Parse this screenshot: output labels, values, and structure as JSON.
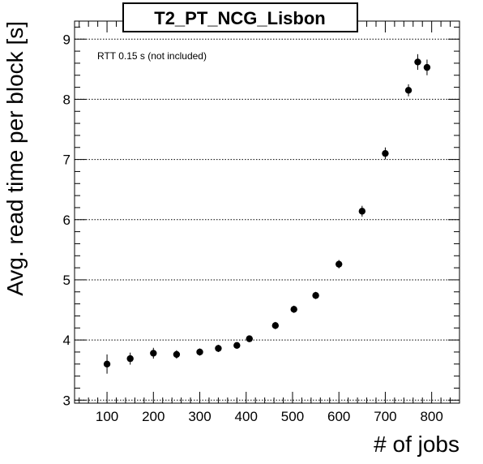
{
  "chart_data": {
    "type": "scatter",
    "title": "T2_PT_NCG_Lisbon",
    "xlabel": "# of jobs",
    "ylabel": "Avg. read time per block [s]",
    "annotation": "RTT 0.15 s (not included)",
    "xlim": [
      30,
      860
    ],
    "ylim": [
      2.95,
      9.3
    ],
    "xticks": [
      100,
      200,
      300,
      400,
      500,
      600,
      700,
      800
    ],
    "yticks": [
      3,
      4,
      5,
      6,
      7,
      8,
      9
    ],
    "grid_y": true,
    "grid_x": false,
    "marker_color": "#000000",
    "points": [
      {
        "x": 100,
        "y": 3.6,
        "err": 0.16
      },
      {
        "x": 150,
        "y": 3.69,
        "err": 0.1
      },
      {
        "x": 200,
        "y": 3.78,
        "err": 0.09
      },
      {
        "x": 250,
        "y": 3.76,
        "err": 0.07
      },
      {
        "x": 300,
        "y": 3.8,
        "err": 0.06
      },
      {
        "x": 340,
        "y": 3.86,
        "err": 0.06
      },
      {
        "x": 380,
        "y": 3.91,
        "err": 0.05
      },
      {
        "x": 407,
        "y": 4.02,
        "err": 0.05
      },
      {
        "x": 463,
        "y": 4.24,
        "err": 0.06
      },
      {
        "x": 503,
        "y": 4.51,
        "err": 0.06
      },
      {
        "x": 550,
        "y": 4.74,
        "err": 0.06
      },
      {
        "x": 600,
        "y": 5.26,
        "err": 0.07
      },
      {
        "x": 650,
        "y": 6.14,
        "err": 0.09
      },
      {
        "x": 700,
        "y": 7.1,
        "err": 0.1
      },
      {
        "x": 750,
        "y": 8.15,
        "err": 0.1
      },
      {
        "x": 770,
        "y": 8.62,
        "err": 0.13
      },
      {
        "x": 790,
        "y": 8.53,
        "err": 0.13
      }
    ]
  }
}
